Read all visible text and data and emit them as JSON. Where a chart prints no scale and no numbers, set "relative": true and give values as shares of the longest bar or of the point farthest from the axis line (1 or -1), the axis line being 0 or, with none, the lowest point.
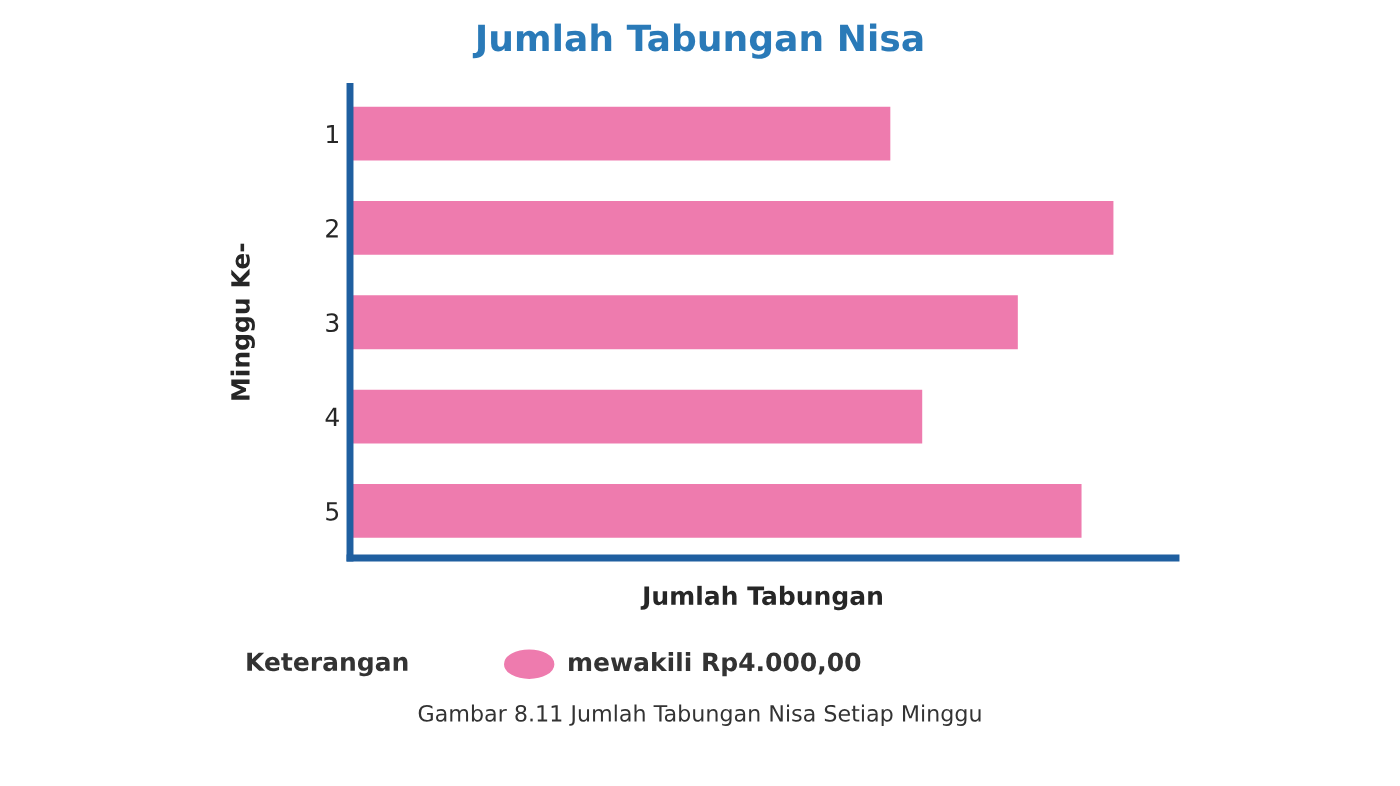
{
  "chart_data": {
    "type": "bar",
    "orientation": "horizontal",
    "relative": true,
    "title": "Jumlah Tabungan Nisa",
    "xlabel": "Jumlah Tabungan",
    "ylabel": "Minggu Ke-",
    "categories": [
      "1",
      "2",
      "3",
      "4",
      "5"
    ],
    "values": [
      0.7083,
      1,
      0.875,
      0.75,
      0.9583
    ],
    "color": "#ee7bae",
    "grid": false,
    "legend": false,
    "annotations": [
      "Keterangan",
      "mewakili Rp4.000,00",
      "Gambar 8.11 Jumlah Tabungan Nisa Setiap Minggu"
    ]
  }
}
